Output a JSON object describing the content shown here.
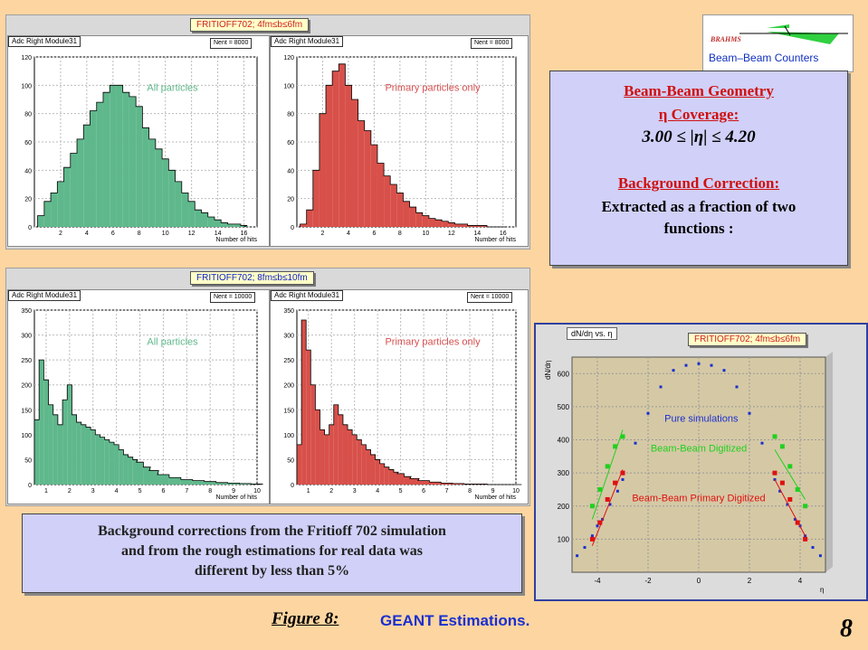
{
  "top_left": {
    "title": "FRITIOFF702;  4fm≤b≤6fm",
    "hist_left": {
      "title": "Adc Right Module31",
      "stats": "Nent = 8000",
      "annotation": "All particles",
      "xlabel": "Number of hits"
    },
    "hist_right": {
      "title": "Adc Right Module31",
      "stats": "Nent = 8000",
      "annotation": "Primary particles only",
      "xlabel": "Number of hits"
    }
  },
  "bottom_left": {
    "title": "FRITIOFF702;  8fm≤b≤10fm",
    "hist_left": {
      "title": "Adc Right Module31",
      "stats": "Nent = 10000",
      "annotation": "All particles",
      "xlabel": "Number of hits"
    },
    "hist_right": {
      "title": "Adc Right Module31",
      "stats": "Nent = 10000",
      "annotation": "Primary particles only",
      "xlabel": "Number of hits"
    }
  },
  "logo": {
    "brand": "BRAHMS",
    "label": "Beam–Beam Counters"
  },
  "info": {
    "line1": "Beam-Beam Geometry",
    "line2": "η Coverage:",
    "line3": "3.00 ≤ |η| ≤ 4.20",
    "line4": "Background Correction:",
    "line5": "Extracted as a fraction of two",
    "line6": "functions :"
  },
  "note": {
    "line1": "Background corrections from the Fritioff 702 simulation",
    "line2": "and from the rough estimations for real data was",
    "line3": "different by less than 5%"
  },
  "dn_plot": {
    "header": "dN/dη  vs.  η",
    "title": "FRITIOFF702; 4fm≤b≤6fm",
    "ylabel": "dN/dη",
    "xlabel": "η"
  },
  "caption": {
    "figure": "Figure 8:",
    "text": "GEANT Estimations."
  },
  "page_number": "8",
  "colors": {
    "green_fill": "#5fb88c",
    "red_fill": "#d8504a",
    "blue": "#1a2fd0",
    "green_mark": "#20d020",
    "red_mark": "#e01010",
    "background": "#fdd5a0"
  },
  "chart_data": [
    {
      "type": "bar",
      "name": "4-6fm all particles",
      "xlim": [
        0,
        17
      ],
      "ylim": [
        0,
        120
      ],
      "xticks": [
        2,
        4,
        6,
        8,
        10,
        12,
        14,
        16
      ],
      "yticks": [
        0,
        20,
        40,
        60,
        80,
        100,
        120
      ],
      "x": [
        0.5,
        1,
        1.5,
        2,
        2.5,
        3,
        3.5,
        4,
        4.5,
        5,
        5.5,
        6,
        6.5,
        7,
        7.5,
        8,
        8.5,
        9,
        9.5,
        10,
        10.5,
        11,
        11.5,
        12,
        12.5,
        13,
        13.5,
        14,
        14.5,
        15,
        15.5,
        16
      ],
      "values": [
        8,
        18,
        24,
        32,
        42,
        52,
        62,
        72,
        82,
        88,
        95,
        100,
        100,
        95,
        92,
        85,
        70,
        62,
        55,
        48,
        40,
        32,
        24,
        18,
        12,
        10,
        7,
        5,
        3,
        2,
        2,
        1
      ]
    },
    {
      "type": "bar",
      "name": "4-6fm primary only",
      "xlim": [
        0,
        17
      ],
      "ylim": [
        0,
        120
      ],
      "xticks": [
        2,
        4,
        6,
        8,
        10,
        12,
        14,
        16
      ],
      "yticks": [
        0,
        20,
        40,
        60,
        80,
        100,
        120
      ],
      "x": [
        0.5,
        1,
        1.5,
        2,
        2.5,
        3,
        3.5,
        4,
        4.5,
        5,
        5.5,
        6,
        6.5,
        7,
        7.5,
        8,
        8.5,
        9,
        9.5,
        10,
        10.5,
        11,
        11.5,
        12,
        12.5,
        13,
        13.5,
        14,
        14.5,
        15,
        15.5,
        16
      ],
      "values": [
        2,
        12,
        40,
        80,
        100,
        110,
        115,
        100,
        90,
        75,
        68,
        58,
        45,
        36,
        30,
        24,
        18,
        14,
        10,
        8,
        6,
        5,
        4,
        3,
        2,
        2,
        1,
        1,
        1,
        0,
        0,
        0
      ]
    },
    {
      "type": "bar",
      "name": "8-10fm all particles",
      "xlim": [
        0.5,
        10
      ],
      "ylim": [
        0,
        350
      ],
      "xticks": [
        1,
        2,
        3,
        4,
        5,
        6,
        7,
        8,
        9,
        10
      ],
      "yticks": [
        0,
        50,
        100,
        150,
        200,
        250,
        300,
        350
      ],
      "x": [
        0.6,
        0.8,
        1,
        1.2,
        1.4,
        1.6,
        1.8,
        2,
        2.2,
        2.4,
        2.6,
        2.8,
        3,
        3.2,
        3.4,
        3.6,
        3.8,
        4,
        4.2,
        4.4,
        4.6,
        4.8,
        5,
        5.3,
        5.6,
        6,
        6.5,
        7,
        7.5,
        8,
        8.5,
        9,
        9.5,
        10
      ],
      "values": [
        130,
        250,
        210,
        160,
        140,
        120,
        170,
        200,
        140,
        125,
        120,
        115,
        110,
        100,
        95,
        90,
        85,
        80,
        70,
        60,
        55,
        50,
        45,
        35,
        28,
        20,
        14,
        10,
        8,
        6,
        4,
        3,
        2,
        1
      ]
    },
    {
      "type": "bar",
      "name": "8-10fm primary only",
      "xlim": [
        0.5,
        10
      ],
      "ylim": [
        0,
        350
      ],
      "xticks": [
        1,
        2,
        3,
        4,
        5,
        6,
        7,
        8,
        9,
        10
      ],
      "yticks": [
        0,
        50,
        100,
        150,
        200,
        250,
        300,
        350
      ],
      "x": [
        0.6,
        0.8,
        1,
        1.2,
        1.4,
        1.6,
        1.8,
        2,
        2.2,
        2.4,
        2.6,
        2.8,
        3,
        3.2,
        3.4,
        3.6,
        3.8,
        4,
        4.2,
        4.4,
        4.6,
        4.8,
        5,
        5.3,
        5.6,
        6,
        6.5,
        7,
        7.5,
        8,
        8.5,
        9,
        9.5,
        10
      ],
      "values": [
        80,
        330,
        270,
        200,
        150,
        110,
        100,
        120,
        160,
        140,
        120,
        110,
        100,
        90,
        80,
        70,
        60,
        50,
        42,
        35,
        30,
        25,
        22,
        16,
        12,
        8,
        5,
        3,
        2,
        1,
        1,
        0,
        0,
        0
      ]
    },
    {
      "type": "scatter",
      "name": "dN/deta vs eta",
      "xlim": [
        -5,
        5
      ],
      "ylim": [
        0,
        650
      ],
      "xticks": [
        -4,
        -2,
        0,
        2,
        4
      ],
      "yticks": [
        100,
        200,
        300,
        400,
        500,
        600
      ],
      "series": [
        {
          "name": "Pure simulations",
          "color": "#1a2fd0",
          "x": [
            -4.8,
            -4.5,
            -4.2,
            -4.0,
            -3.8,
            -3.5,
            -3.2,
            -3.0,
            -2.5,
            -2.0,
            -1.5,
            -1.0,
            -0.5,
            0,
            0.5,
            1.0,
            1.5,
            2.0,
            2.5,
            3.0,
            3.2,
            3.5,
            3.8,
            4.0,
            4.2,
            4.5,
            4.8
          ],
          "y": [
            50,
            75,
            110,
            140,
            160,
            205,
            245,
            280,
            390,
            480,
            560,
            610,
            625,
            630,
            625,
            610,
            560,
            480,
            390,
            280,
            245,
            205,
            160,
            140,
            110,
            75,
            50
          ]
        },
        {
          "name": "Beam-Beam Digitized",
          "color": "#20d020",
          "x": [
            -4.2,
            -3.9,
            -3.6,
            -3.3,
            -3.0,
            3.0,
            3.3,
            3.6,
            3.9,
            4.2
          ],
          "y": [
            200,
            250,
            320,
            380,
            410,
            410,
            380,
            320,
            250,
            200
          ]
        },
        {
          "name": "Beam-Beam Primary Digitized",
          "color": "#e01010",
          "x": [
            -4.2,
            -3.9,
            -3.6,
            -3.3,
            -3.0,
            3.0,
            3.3,
            3.6,
            3.9,
            4.2
          ],
          "y": [
            100,
            150,
            220,
            270,
            300,
            300,
            270,
            220,
            150,
            100
          ]
        }
      ]
    }
  ]
}
